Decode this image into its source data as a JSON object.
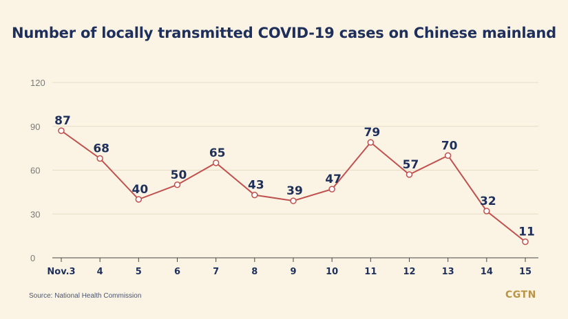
{
  "title": "Number of locally transmitted COVID-19 cases on Chinese mainland",
  "source": "Source: National Health Commission",
  "logo": "CGTN",
  "colors": {
    "background": "#fbf4e4",
    "line": "#c0504d",
    "title": "#1d2f5a",
    "logo": "#b99447"
  },
  "chart_data": {
    "type": "line",
    "categories": [
      "Nov.3",
      "4",
      "5",
      "6",
      "7",
      "8",
      "9",
      "10",
      "11",
      "12",
      "13",
      "14",
      "15"
    ],
    "series": [
      {
        "values": [
          87,
          68,
          40,
          50,
          65,
          43,
          39,
          47,
          79,
          57,
          70,
          32,
          11
        ]
      }
    ],
    "yticks": [
      0,
      30,
      60,
      90,
      120
    ],
    "ylim": [
      0,
      120
    ],
    "grid": true,
    "data_labels": true
  }
}
